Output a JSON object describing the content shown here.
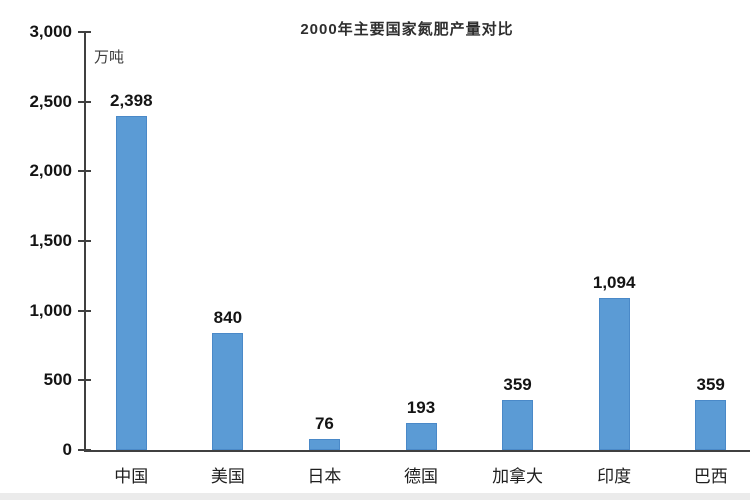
{
  "page": {
    "background": "#ffffff",
    "bottom_strip_color": "#ebebeb"
  },
  "chart_data": {
    "type": "bar",
    "title": "2000年主要国家氮肥产量对比",
    "unit_label": "万吨",
    "categories": [
      "中国",
      "美国",
      "日本",
      "德国",
      "加拿大",
      "印度",
      "巴西"
    ],
    "values": [
      2398,
      840,
      76,
      193,
      359,
      1094,
      359
    ],
    "value_labels": [
      "2,398",
      "840",
      "76",
      "193",
      "359",
      "1,094",
      "359"
    ],
    "y_ticks": [
      0,
      500,
      1000,
      1500,
      2000,
      2500,
      3000
    ],
    "y_tick_labels": [
      "0",
      "500",
      "1,000",
      "1,500",
      "2,000",
      "2,500",
      "3,000"
    ],
    "ylim": [
      0,
      3000
    ],
    "xlabel": "",
    "ylabel": "",
    "grid": false,
    "legend": false,
    "bar_color": "#5B9BD5",
    "bar_border_color": "#4a89c8",
    "axis_color": "#404040",
    "label_color": "#141414"
  }
}
